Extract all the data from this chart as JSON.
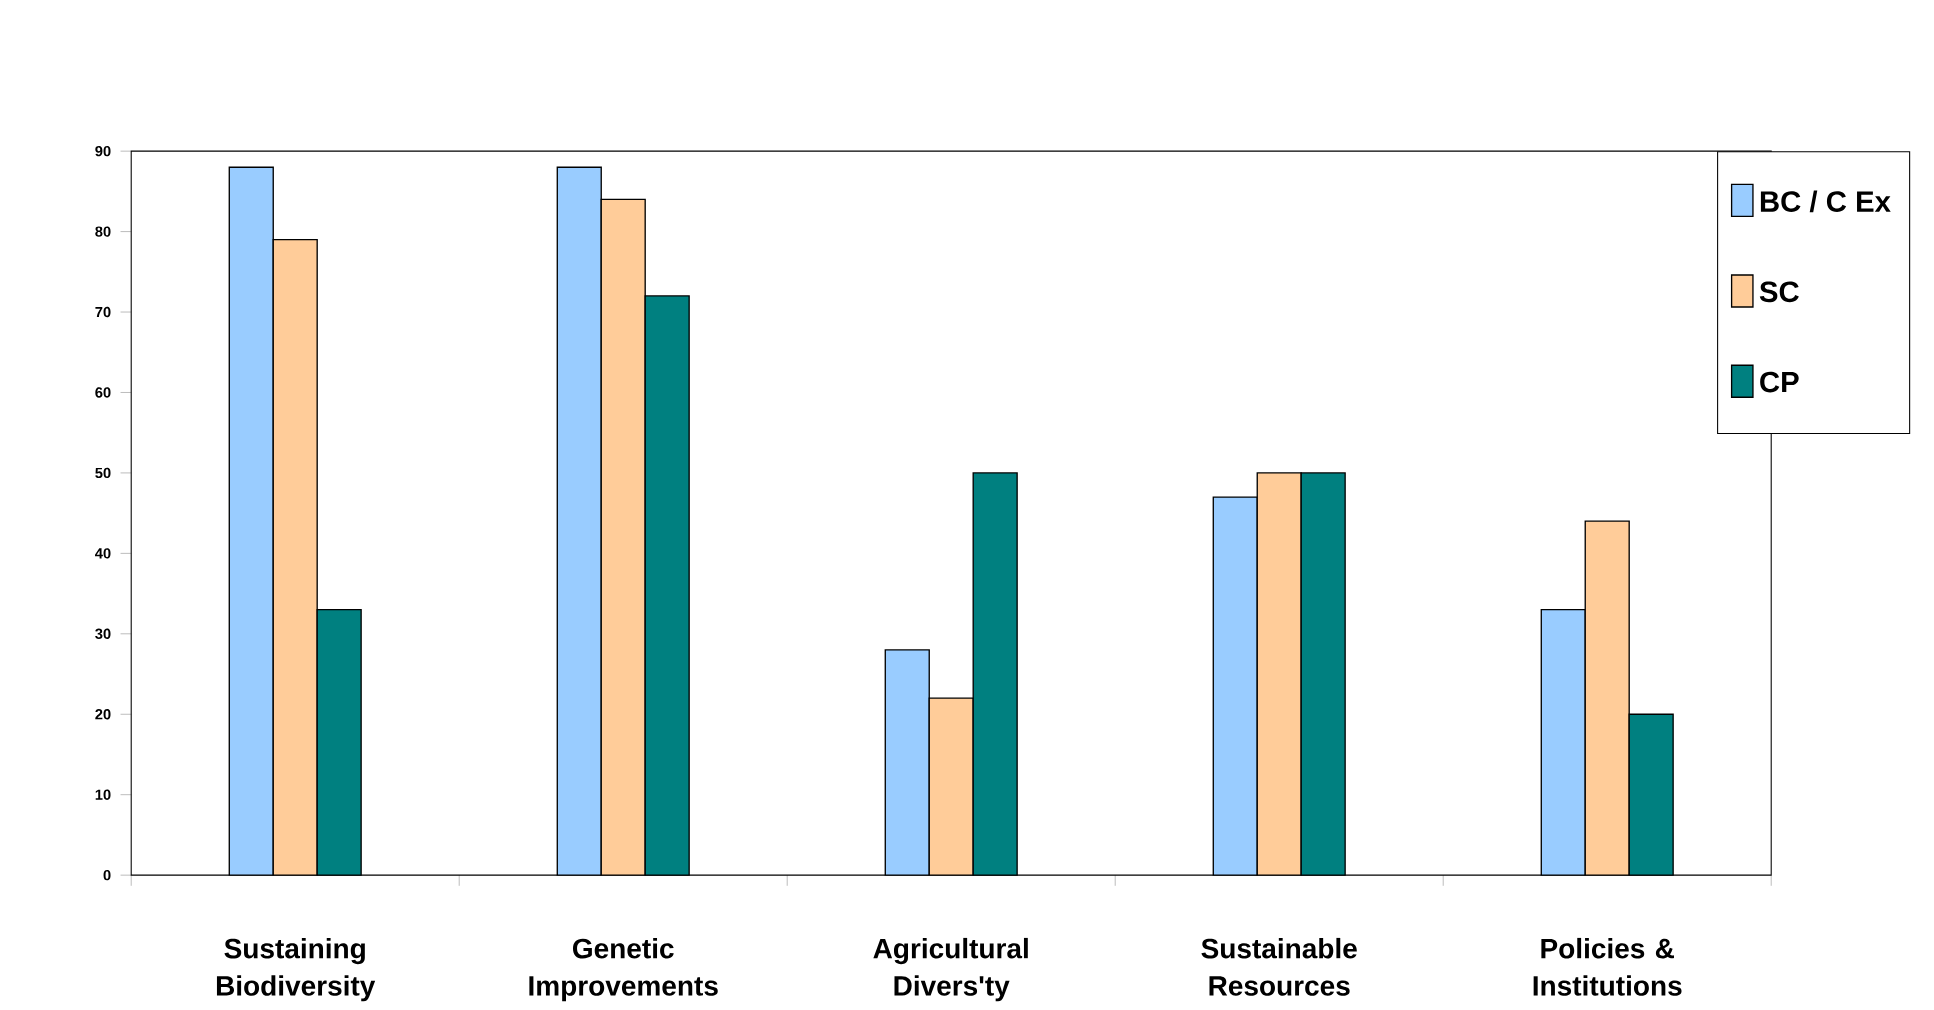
{
  "chart_data": {
    "type": "bar",
    "categories": [
      "Sustaining Biodiversity",
      "Genetic Improvements",
      "Agricultural Divers'ty",
      "Sustainable Resources",
      "Policies & Institutions"
    ],
    "series": [
      {
        "name": "BC / C Ex",
        "color": "#99ccff",
        "values": [
          88,
          88,
          28,
          47,
          33
        ]
      },
      {
        "name": "SC",
        "color": "#ffcc99",
        "values": [
          79,
          84,
          22,
          50,
          44
        ]
      },
      {
        "name": "CP",
        "color": "#008080",
        "values": [
          33,
          72,
          50,
          50,
          20
        ]
      }
    ],
    "ylim": [
      0,
      90
    ],
    "yticks": [
      0,
      10,
      20,
      30,
      40,
      50,
      60,
      70,
      80,
      90
    ],
    "grid": false,
    "legend": "top right"
  }
}
